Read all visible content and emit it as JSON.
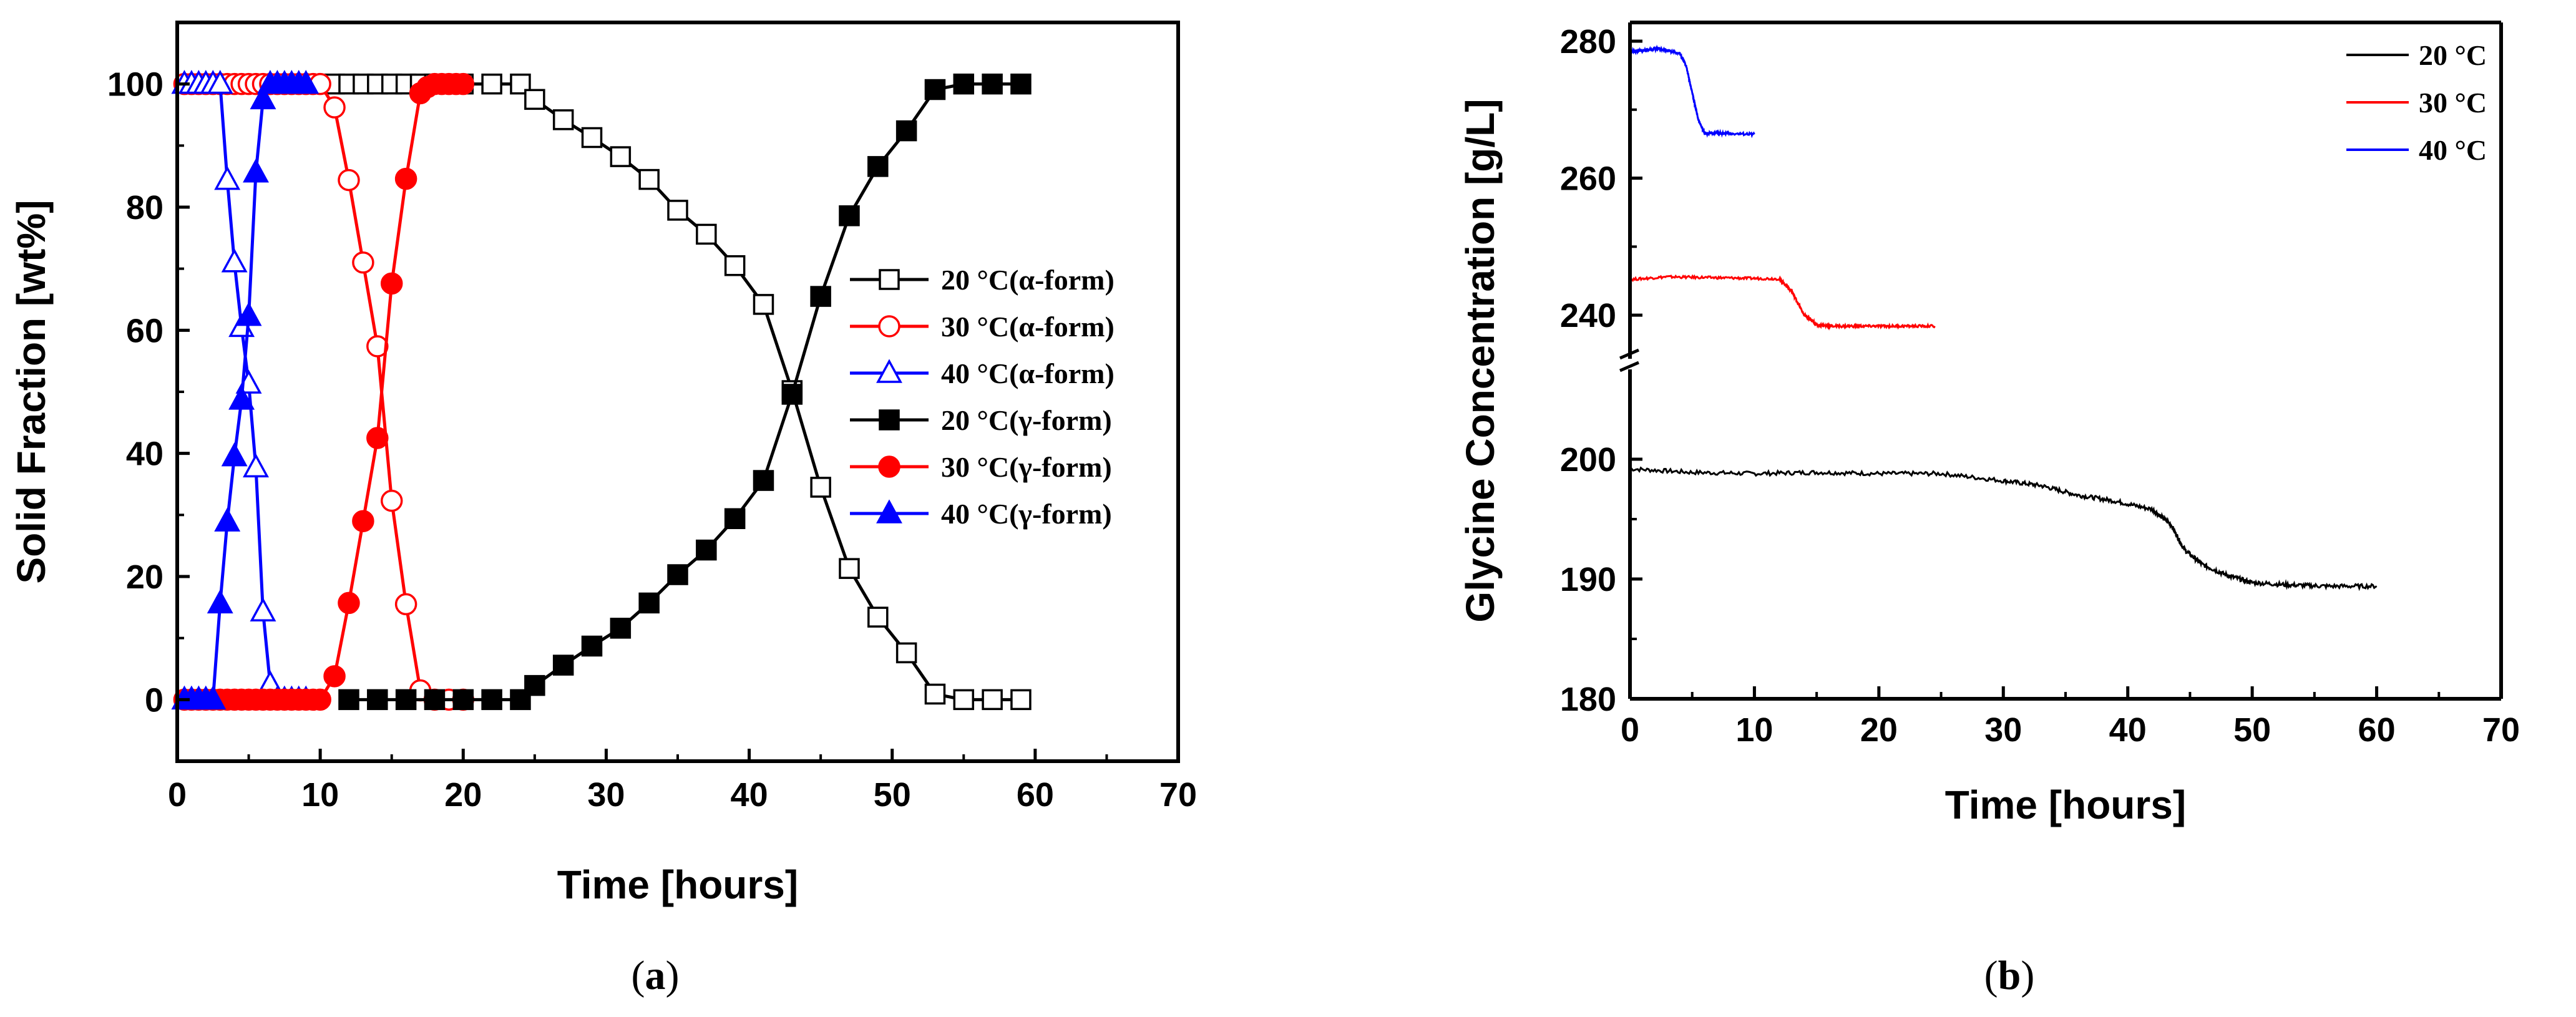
{
  "chart_data": [
    {
      "type": "line",
      "panel_label": "(a)",
      "panel_letter": "a",
      "xlabel": "Time [hours]",
      "ylabel": "Solid Fraction [wt%]",
      "xlim": [
        0,
        70
      ],
      "ylim": [
        -10,
        110
      ],
      "xticks": [
        0,
        10,
        20,
        30,
        40,
        50,
        60,
        70
      ],
      "yticks": [
        0,
        20,
        40,
        60,
        80,
        100
      ],
      "legend_position": "right",
      "series": [
        {
          "name": "20 °C(α-form)",
          "color": "#000000",
          "marker": "square",
          "filled": false,
          "x": [
            11,
            12,
            13,
            14,
            15,
            16,
            17,
            18,
            19,
            20,
            22,
            24,
            25,
            27,
            29,
            31,
            33,
            35,
            37,
            39,
            41,
            43,
            45,
            47,
            49,
            51,
            53,
            55,
            57,
            59
          ],
          "y": [
            100,
            100,
            100,
            100,
            100,
            100,
            100,
            100,
            100,
            100,
            100,
            100,
            97.5,
            94.2,
            91.3,
            88.2,
            84.5,
            79.5,
            75.6,
            70.5,
            64.2,
            50.2,
            34.5,
            21.3,
            13.4,
            7.6,
            0.9,
            0,
            0,
            0
          ]
        },
        {
          "name": "30 °C(α-form)",
          "color": "#ff0000",
          "marker": "circle",
          "filled": false,
          "x": [
            0.5,
            1,
            1.5,
            2,
            2.5,
            3,
            3.5,
            4,
            4.5,
            5,
            5.5,
            6,
            6.5,
            7,
            7.5,
            8,
            8.5,
            9,
            9.5,
            10,
            11,
            12,
            13,
            14,
            15,
            16,
            17,
            18,
            19,
            20
          ],
          "y": [
            100,
            100,
            100,
            100,
            100,
            100,
            100,
            100,
            100,
            100,
            100,
            100,
            100,
            100,
            100,
            100,
            100,
            100,
            100,
            100,
            96.2,
            84.4,
            71,
            57.4,
            32.3,
            15.5,
            1.5,
            0,
            0,
            0
          ]
        },
        {
          "name": "40 °C(α-form)",
          "color": "#0000ff",
          "marker": "triangle",
          "filled": false,
          "x": [
            0.5,
            1,
            1.5,
            2,
            2.5,
            3,
            3.5,
            4,
            4.5,
            5,
            5.5,
            6,
            6.5,
            7,
            7.5,
            8,
            8.5,
            9
          ],
          "y": [
            100,
            100,
            100,
            100,
            100,
            100,
            84.4,
            71,
            60.5,
            51.3,
            37.7,
            14.3,
            2.5,
            0,
            0,
            0,
            0,
            0
          ]
        },
        {
          "name": "20 °C(γ-form)",
          "color": "#000000",
          "marker": "square",
          "filled": true,
          "x": [
            12,
            14,
            16,
            18,
            20,
            22,
            24,
            25,
            27,
            29,
            31,
            33,
            35,
            37,
            39,
            41,
            43,
            45,
            47,
            49,
            51,
            53,
            55,
            57,
            59
          ],
          "y": [
            0,
            0,
            0,
            0,
            0,
            0,
            0,
            2.3,
            5.6,
            8.7,
            11.6,
            15.7,
            20.3,
            24.3,
            29.4,
            35.6,
            49.6,
            65.5,
            78.6,
            86.6,
            92.4,
            99.1,
            100,
            100,
            100
          ]
        },
        {
          "name": "30 °C(γ-form)",
          "color": "#ff0000",
          "marker": "circle",
          "filled": true,
          "x": [
            0.5,
            1,
            1.5,
            2,
            2.5,
            3,
            3.5,
            4,
            4.5,
            5,
            5.5,
            6,
            6.5,
            7,
            7.5,
            8,
            8.5,
            9,
            9.5,
            10,
            11,
            12,
            13,
            14,
            15,
            16,
            17,
            17.5,
            18,
            18.5,
            19,
            19.5,
            20
          ],
          "y": [
            0,
            0,
            0,
            0,
            0,
            0,
            0,
            0,
            0,
            0,
            0,
            0,
            0,
            0,
            0,
            0,
            0,
            0,
            0,
            0,
            3.8,
            15.7,
            29,
            42.5,
            67.6,
            84.6,
            98.5,
            99.5,
            100,
            100,
            100,
            100,
            100
          ]
        },
        {
          "name": "40 °C(γ-form)",
          "color": "#0000ff",
          "marker": "triangle",
          "filled": true,
          "x": [
            0.5,
            1,
            1.5,
            2,
            2.5,
            3,
            3.5,
            4,
            4.5,
            5,
            5.5,
            6,
            6.5,
            7,
            7.5,
            8,
            8.5,
            9
          ],
          "y": [
            0,
            0,
            0,
            0,
            0,
            15.6,
            28.9,
            39.5,
            48.7,
            62.3,
            85.6,
            97.5,
            100,
            100,
            100,
            100,
            100,
            100
          ]
        }
      ]
    },
    {
      "type": "line",
      "panel_label": "(b)",
      "panel_letter": "b",
      "xlabel": "Time [hours]",
      "ylabel": "Glycine Concentration [g/L]",
      "xlim": [
        0,
        70
      ],
      "ylim": [
        180,
        280
      ],
      "axis_break": {
        "between": [
          205,
          235
        ]
      },
      "xticks": [
        0,
        10,
        20,
        30,
        40,
        50,
        60,
        70
      ],
      "yticks": [
        180,
        190,
        200,
        240,
        260,
        280
      ],
      "legend_position": "top-right",
      "series": [
        {
          "name": "20 °C",
          "color": "#000000",
          "x": [
            0,
            5,
            10,
            15,
            20,
            25,
            30,
            33,
            36,
            39,
            42,
            43.5,
            44.5,
            46,
            48,
            50,
            53,
            56,
            60
          ],
          "y": [
            199.2,
            198.9,
            198.8,
            198.9,
            198.8,
            198.8,
            198.2,
            197.8,
            197.0,
            196.5,
            195.8,
            194.5,
            192.5,
            191.2,
            190.3,
            189.7,
            189.5,
            189.4,
            189.4
          ]
        },
        {
          "name": "30 °C",
          "color": "#ff0000",
          "x": [
            0,
            3,
            6,
            9,
            12,
            13,
            14,
            15,
            16,
            18,
            20,
            22,
            24.5
          ],
          "y": [
            245.2,
            245.6,
            245.5,
            245.4,
            245.3,
            243.5,
            240.0,
            238.6,
            238.4,
            238.4,
            238.4,
            238.4,
            238.4
          ]
        },
        {
          "name": "40 °C",
          "color": "#0000ff",
          "x": [
            0,
            1,
            2,
            3,
            4,
            4.5,
            5,
            5.5,
            6,
            7,
            8,
            10
          ],
          "y": [
            278.5,
            278.6,
            278.9,
            278.7,
            278.2,
            276.5,
            272.5,
            268.5,
            266.5,
            266.6,
            266.5,
            266.4
          ]
        }
      ]
    }
  ]
}
